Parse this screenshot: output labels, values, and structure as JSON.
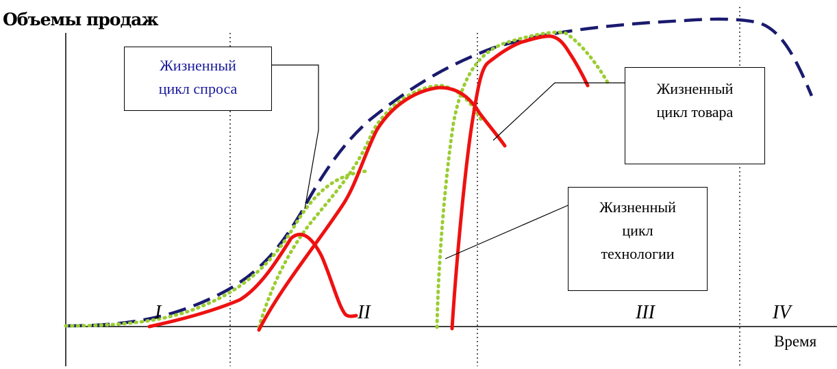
{
  "title": "Объемы продаж",
  "x_axis_label": "Время",
  "stages": [
    "I",
    "II",
    "III",
    "IV"
  ],
  "boxes": {
    "demand": {
      "line1": "Жизненный",
      "line2": "цикл спроса"
    },
    "product": {
      "line1": "Жизненный",
      "line2": "цикл товара"
    },
    "technology": {
      "line1": "Жизненный",
      "line2": "цикл",
      "line3": "технологии"
    }
  },
  "colors": {
    "demand_curve": "#1a1a6e",
    "technology_curve": "#9acd32",
    "product_curve": "#ee1111",
    "axes": "#000000"
  }
}
